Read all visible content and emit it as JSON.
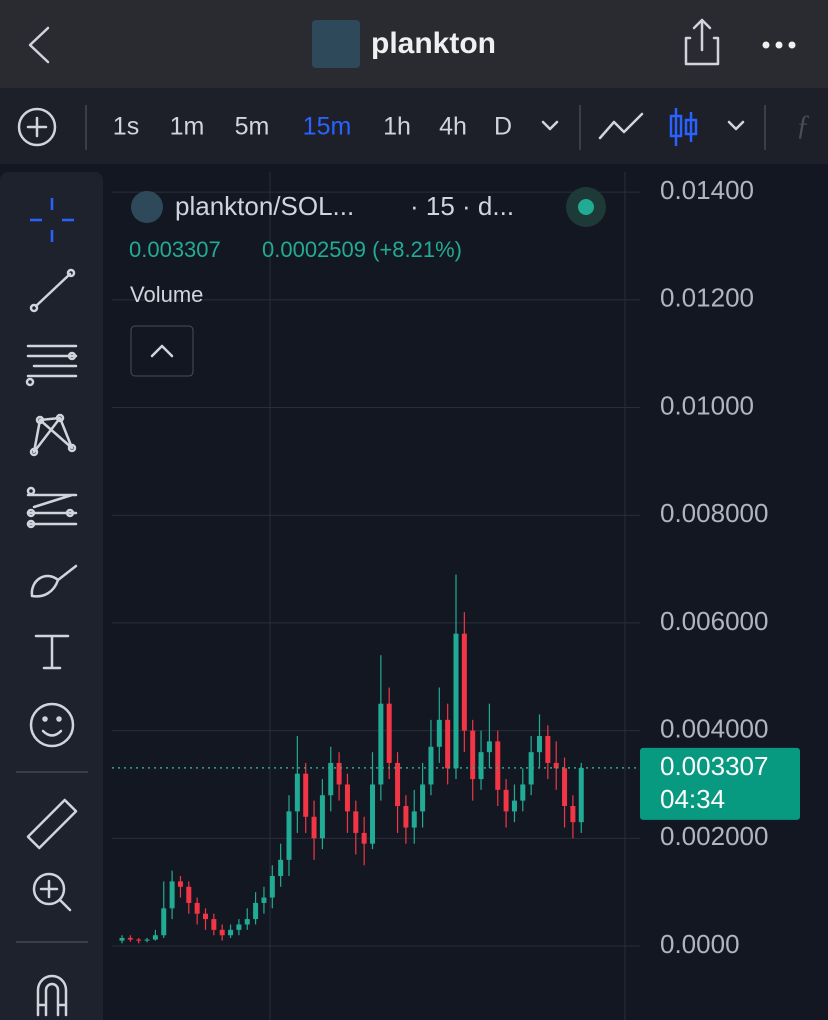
{
  "header": {
    "title": "plankton"
  },
  "toolbar": {
    "intervals": [
      "1s",
      "1m",
      "5m",
      "15m",
      "1h",
      "4h",
      "D"
    ],
    "active_interval": "15m"
  },
  "chart_data": {
    "type": "candlestick",
    "legend": {
      "symbol": "plankton/SOL...",
      "interval": "· 15 · d...",
      "change": "0.0002509 (+8.21%)",
      "indicator": "Volume"
    },
    "last_price": 0.003307,
    "countdown": "04:34",
    "up_color": "#22ab94",
    "down_color": "#f23645",
    "grid": true,
    "ylim": [
      -0.001374,
      0.014374
    ],
    "yticks": [
      {
        "value": 0,
        "label": "0.0000"
      },
      {
        "value": 0.002,
        "label": "0.002000"
      },
      {
        "value": 0.004,
        "label": "0.004000"
      },
      {
        "value": 0.006,
        "label": "0.006000"
      },
      {
        "value": 0.008,
        "label": "0.008000"
      },
      {
        "value": 0.01,
        "label": "0.01000"
      },
      {
        "value": 0.012,
        "label": "0.01200"
      },
      {
        "value": 0.014,
        "label": "0.01400"
      }
    ],
    "open": [
      0.0001,
      0.00015,
      0.00012,
      0.0001,
      0.00012,
      0.0002,
      0.0007,
      0.0012,
      0.0011,
      0.0008,
      0.0006,
      0.0005,
      0.0003,
      0.0002,
      0.0003,
      0.0004,
      0.0005,
      0.0008,
      0.0009,
      0.0013,
      0.0016,
      0.0025,
      0.0032,
      0.0024,
      0.002,
      0.0028,
      0.0034,
      0.003,
      0.0025,
      0.0021,
      0.0019,
      0.003,
      0.0045,
      0.0034,
      0.0026,
      0.0022,
      0.0025,
      0.003,
      0.0037,
      0.0042,
      0.0033,
      0.0058,
      0.004,
      0.0031,
      0.0036,
      0.0038,
      0.0029,
      0.0025,
      0.0027,
      0.003,
      0.0036,
      0.0039,
      0.0034,
      0.0033,
      0.0026,
      0.0023
    ],
    "high": [
      0.0002,
      0.0002,
      0.00015,
      0.00015,
      0.0003,
      0.0012,
      0.0014,
      0.0013,
      0.0012,
      0.0009,
      0.0007,
      0.0006,
      0.0004,
      0.0004,
      0.0005,
      0.0007,
      0.001,
      0.0011,
      0.0015,
      0.0019,
      0.0028,
      0.0039,
      0.0034,
      0.0027,
      0.0031,
      0.0037,
      0.0036,
      0.0032,
      0.0027,
      0.0024,
      0.0036,
      0.0054,
      0.0048,
      0.0036,
      0.0028,
      0.0029,
      0.0034,
      0.0042,
      0.0048,
      0.0045,
      0.0069,
      0.0062,
      0.0042,
      0.004,
      0.0045,
      0.004,
      0.0031,
      0.003,
      0.0033,
      0.0039,
      0.0043,
      0.0041,
      0.0038,
      0.0035,
      0.0028,
      0.0034
    ],
    "low": [
      5e-05,
      8e-05,
      5e-05,
      7e-05,
      0.0001,
      0.00015,
      0.0005,
      0.0009,
      0.0006,
      0.0004,
      0.0003,
      0.0002,
      0.0001,
      0.00015,
      0.0002,
      0.0003,
      0.0004,
      0.0006,
      0.0007,
      0.0011,
      0.0013,
      0.0021,
      0.0021,
      0.0016,
      0.0018,
      0.0025,
      0.0027,
      0.0021,
      0.0017,
      0.0015,
      0.0018,
      0.0027,
      0.0031,
      0.0021,
      0.0019,
      0.0019,
      0.0022,
      0.0028,
      0.0034,
      0.003,
      0.0031,
      0.0036,
      0.0027,
      0.0029,
      0.0033,
      0.0026,
      0.0022,
      0.0023,
      0.0025,
      0.0028,
      0.0033,
      0.0031,
      0.0029,
      0.0022,
      0.002,
      0.0021
    ],
    "close": [
      0.00015,
      0.00012,
      0.0001,
      0.00012,
      0.0002,
      0.0007,
      0.0012,
      0.0011,
      0.0008,
      0.0006,
      0.0005,
      0.0003,
      0.0002,
      0.0003,
      0.0004,
      0.0005,
      0.0008,
      0.0009,
      0.0013,
      0.0016,
      0.0025,
      0.0032,
      0.0024,
      0.002,
      0.0028,
      0.0034,
      0.003,
      0.0025,
      0.0021,
      0.0019,
      0.003,
      0.0045,
      0.0034,
      0.0026,
      0.0022,
      0.0025,
      0.003,
      0.0037,
      0.0042,
      0.0033,
      0.0058,
      0.004,
      0.0031,
      0.0036,
      0.0038,
      0.0029,
      0.0025,
      0.0027,
      0.003,
      0.0036,
      0.0039,
      0.0034,
      0.0033,
      0.0026,
      0.0023,
      0.003307
    ]
  }
}
